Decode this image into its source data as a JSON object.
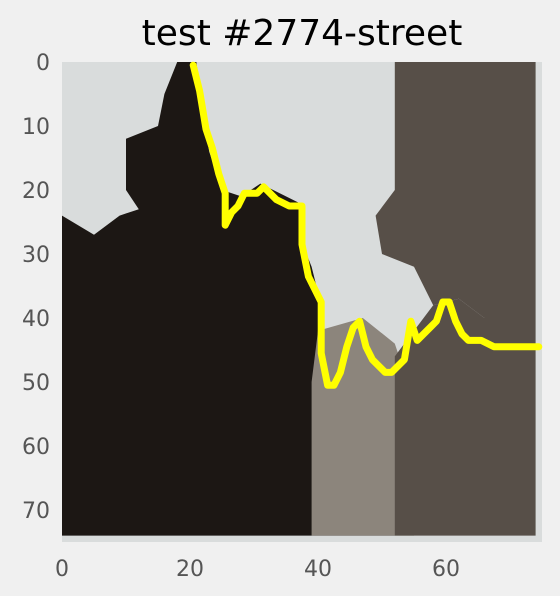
{
  "chart_data": {
    "type": "heatmap",
    "title": "test #2774-street",
    "subtitle": "",
    "xlabel": "",
    "ylabel": "",
    "image_shape": [
      75,
      75
    ],
    "xlim": [
      0,
      74
    ],
    "ylim": [
      74,
      0
    ],
    "y_axis_inverted": true,
    "grid": false,
    "xticks": [
      0,
      20,
      40,
      60
    ],
    "yticks": [
      0,
      10,
      20,
      30,
      40,
      50,
      60,
      70
    ],
    "background_image": "grayscale street photo: tall old buildings, pale sky between rooftops",
    "overlay": {
      "type": "line",
      "color": "#ffff00",
      "description": "skyline boundary trace",
      "x": [
        20,
        21,
        22,
        23,
        24,
        25,
        25,
        26,
        27,
        28,
        30,
        31,
        33,
        35,
        37,
        37,
        38,
        40,
        40,
        41,
        42,
        43,
        44,
        45,
        46,
        47,
        48,
        50,
        51,
        53,
        54,
        55,
        57,
        58,
        59,
        60,
        61,
        62,
        63,
        65,
        67,
        70,
        74
      ],
      "y": [
        0,
        4,
        10,
        13,
        17,
        20,
        25,
        23,
        22,
        20,
        20,
        19,
        21,
        22,
        22,
        28,
        33,
        37,
        45,
        50,
        50,
        48,
        44,
        41,
        40,
        44,
        46,
        48,
        48,
        46,
        40,
        43,
        41,
        40,
        37,
        37,
        40,
        42,
        43,
        43,
        44,
        44,
        44
      ]
    },
    "colors": {
      "sky": "#d9dcdc",
      "dark": "#1c1714",
      "mid": "#574f48",
      "light": "#8c857c",
      "trace": "#ffff00"
    }
  }
}
